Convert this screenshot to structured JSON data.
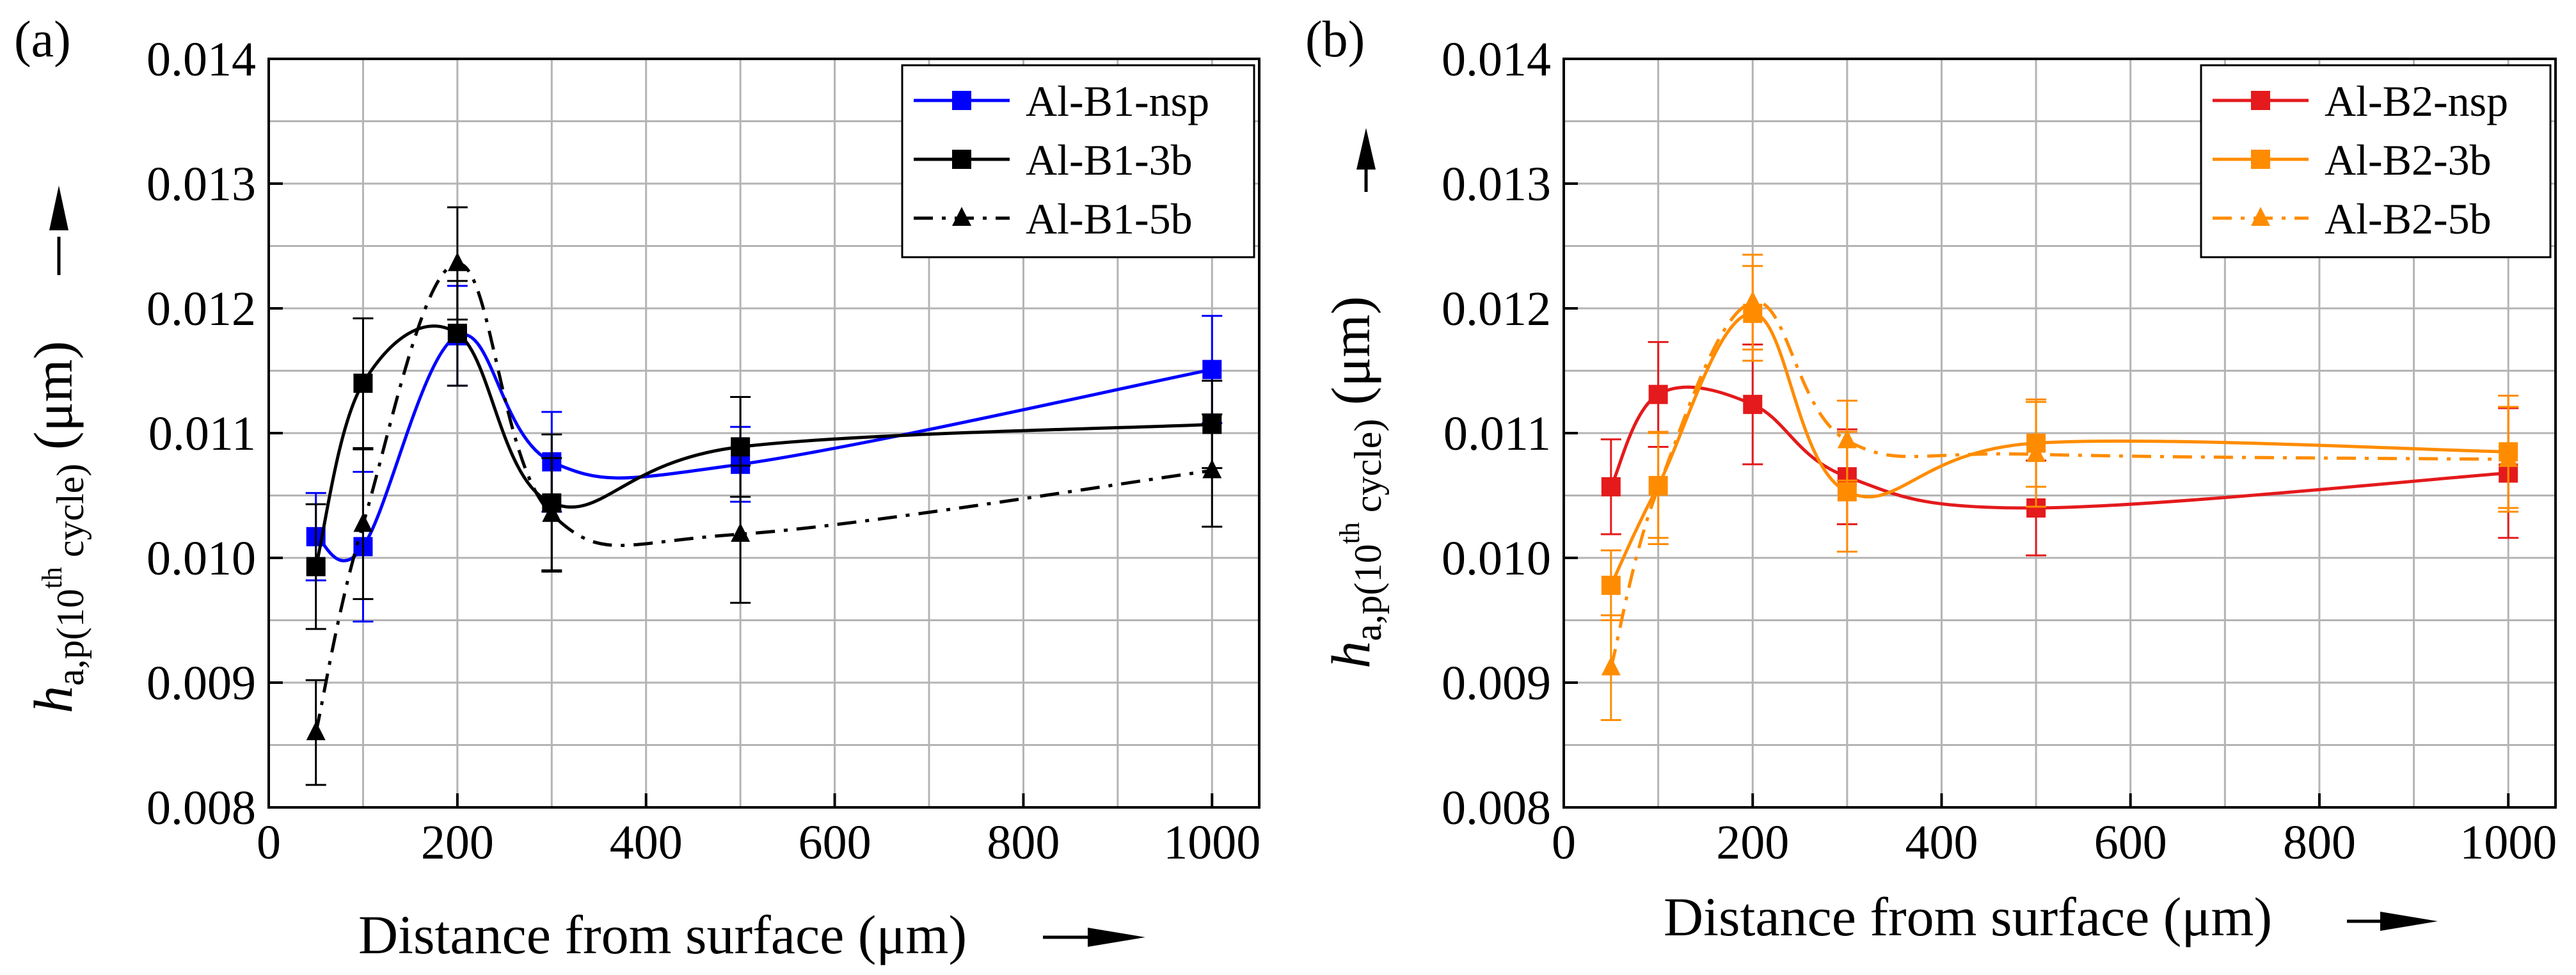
{
  "chart_data": [
    {
      "type": "line",
      "panel_label": "(a)",
      "xlabel": "Distance from surface (μm)",
      "ylabel": {
        "symbol": "h",
        "subscript": "a,p(10",
        "superscript": "th",
        "subscript_end": " cycle)",
        "unit": " (μm)"
      },
      "xlim": [
        0,
        1050
      ],
      "ylim": [
        0.008,
        0.014
      ],
      "xticks": [
        0,
        200,
        400,
        600,
        800,
        1000
      ],
      "xtick_labels": [
        "0",
        "200",
        "400",
        "600",
        "800",
        "1000"
      ],
      "yticks": [
        0.008,
        0.009,
        0.01,
        0.011,
        0.012,
        0.013,
        0.014
      ],
      "ytick_labels": [
        "0.008",
        "0.009",
        "0.010",
        "0.011",
        "0.012",
        "0.013",
        "0.014"
      ],
      "grid": true,
      "legend_position": "top-right",
      "series": [
        {
          "name": "Al-B1-nsp",
          "color": "#0000ff",
          "dash": "solid",
          "marker": "square",
          "x": [
            50,
            100,
            200,
            300,
            500,
            1000
          ],
          "y": [
            0.01017,
            0.01009,
            0.01178,
            0.01077,
            0.01075,
            0.01151
          ],
          "err": [
            0.00035,
            0.0006,
            0.0004,
            0.0004,
            0.0003,
            0.00043
          ]
        },
        {
          "name": "Al-B1-3b",
          "color": "#000000",
          "dash": "solid",
          "marker": "square",
          "x": [
            50,
            100,
            200,
            300,
            500,
            1000
          ],
          "y": [
            0.00993,
            0.0114,
            0.0118,
            0.01044,
            0.01089,
            0.01107
          ],
          "err": [
            0.0005,
            0.00052,
            0.00042,
            0.00055,
            0.0004,
            0.00035
          ]
        },
        {
          "name": "Al-B1-5b",
          "color": "#000000",
          "dash": "dashdot",
          "marker": "triangle",
          "x": [
            50,
            100,
            200,
            300,
            500,
            1000
          ],
          "y": [
            0.0086,
            0.01027,
            0.01236,
            0.01035,
            0.01019,
            0.0107
          ],
          "err": [
            0.00042,
            0.0006,
            0.00045,
            0.00045,
            0.00055,
            0.00045
          ]
        }
      ]
    },
    {
      "type": "line",
      "panel_label": "(b)",
      "xlabel": "Distance from surface (μm)",
      "ylabel": {
        "symbol": "h",
        "subscript": "a,p(10",
        "superscript": "th",
        "subscript_end": " cycle)",
        "unit": " (μm)"
      },
      "xlim": [
        0,
        1050
      ],
      "ylim": [
        0.008,
        0.014
      ],
      "xticks": [
        0,
        200,
        400,
        600,
        800,
        1000
      ],
      "xtick_labels": [
        "0",
        "200",
        "400",
        "600",
        "800",
        "1000"
      ],
      "yticks": [
        0.008,
        0.009,
        0.01,
        0.011,
        0.012,
        0.013,
        0.014
      ],
      "ytick_labels": [
        "0.008",
        "0.009",
        "0.010",
        "0.011",
        "0.012",
        "0.013",
        "0.014"
      ],
      "grid": true,
      "legend_position": "top-right",
      "series": [
        {
          "name": "Al-B2-nsp",
          "color": "#e41a1c",
          "dash": "solid",
          "marker": "square",
          "x": [
            50,
            100,
            200,
            300,
            500,
            1000
          ],
          "y": [
            0.01057,
            0.01131,
            0.01123,
            0.01065,
            0.0104,
            0.01068
          ],
          "err": [
            0.00038,
            0.00042,
            0.00048,
            0.00038,
            0.00038,
            0.00052
          ]
        },
        {
          "name": "Al-B2-3b",
          "color": "#ff8c00",
          "dash": "solid",
          "marker": "square",
          "x": [
            50,
            100,
            200,
            300,
            500,
            1000
          ],
          "y": [
            0.00978,
            0.01058,
            0.01196,
            0.01053,
            0.01092,
            0.01085
          ],
          "err": [
            0.00028,
            0.00042,
            0.00038,
            0.00048,
            0.00035,
            0.00045
          ]
        },
        {
          "name": "Al-B2-5b",
          "color": "#ff8c00",
          "dash": "dashdot",
          "marker": "triangle",
          "x": [
            50,
            100,
            200,
            300,
            500,
            1000
          ],
          "y": [
            0.00912,
            0.01056,
            0.01205,
            0.01094,
            0.01083,
            0.01079
          ],
          "err": [
            0.00042,
            0.00045,
            0.00038,
            0.00032,
            0.00042,
            0.00042
          ]
        }
      ]
    }
  ]
}
